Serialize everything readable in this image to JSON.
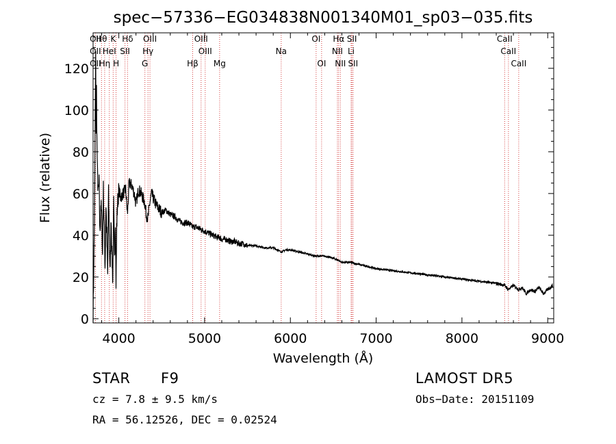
{
  "chart_data": {
    "type": "line",
    "title": "spec−57336−EG034838N001340M01_sp03−035.fits",
    "xlabel": "Wavelength (Å)",
    "ylabel": "Flux (relative)",
    "xlim": [
      3700,
      9070
    ],
    "ylim": [
      -2,
      137
    ],
    "grid": false,
    "x_ticks": [
      {
        "v": 4000,
        "label": "4000"
      },
      {
        "v": 5000,
        "label": "5000"
      },
      {
        "v": 6000,
        "label": "6000"
      },
      {
        "v": 7000,
        "label": "7000"
      },
      {
        "v": 8000,
        "label": "8000"
      },
      {
        "v": 9000,
        "label": "9000"
      }
    ],
    "y_ticks": [
      {
        "v": 0,
        "label": "0"
      },
      {
        "v": 20,
        "label": "20"
      },
      {
        "v": 40,
        "label": "40"
      },
      {
        "v": 60,
        "label": "60"
      },
      {
        "v": 80,
        "label": "80"
      },
      {
        "v": 100,
        "label": "100"
      },
      {
        "v": 120,
        "label": "120"
      }
    ],
    "series": [
      {
        "x": [
          3700,
          3710,
          3720,
          3730,
          3735,
          3740,
          3745,
          3750,
          3760,
          3770,
          3780,
          3790,
          3800,
          3810,
          3820,
          3830,
          3840,
          3850,
          3860,
          3870,
          3880,
          3890,
          3900,
          3910,
          3920,
          3930,
          3940,
          3950,
          3960,
          3968,
          3975,
          3985,
          4000,
          4020,
          4050,
          4080,
          4101,
          4120,
          4150,
          4180,
          4200,
          4230,
          4260,
          4300,
          4320,
          4340,
          4360,
          4380,
          4400,
          4430,
          4460,
          4500,
          4550,
          4600,
          4650,
          4700,
          4750,
          4800,
          4861,
          4900,
          4950,
          5000,
          5050,
          5100,
          5150,
          5175,
          5200,
          5250,
          5300,
          5350,
          5400,
          5450,
          5500,
          5600,
          5700,
          5800,
          5893,
          5950,
          6000,
          6100,
          6200,
          6300,
          6400,
          6500,
          6563,
          6600,
          6700,
          6800,
          6900,
          7000,
          7200,
          7400,
          7600,
          7800,
          8000,
          8200,
          8400,
          8498,
          8542,
          8600,
          8662,
          8700,
          8750,
          8800,
          8850,
          8900,
          8950,
          9000,
          9030,
          9060
        ],
        "y": [
          0,
          30,
          65,
          125,
          90,
          110,
          85,
          70,
          60,
          65,
          40,
          55,
          50,
          30,
          62,
          45,
          25,
          55,
          40,
          20,
          60,
          38,
          22,
          50,
          30,
          18,
          55,
          28,
          48,
          15,
          44,
          55,
          62,
          58,
          60,
          62,
          50,
          65,
          64,
          60,
          55,
          62,
          60,
          56,
          50,
          48,
          55,
          60,
          58,
          55,
          53,
          51,
          52,
          50,
          49,
          47,
          46,
          46,
          44,
          44,
          43,
          42,
          41,
          40,
          39,
          39,
          38,
          38,
          37,
          37,
          36,
          36,
          35,
          35,
          34,
          34,
          32,
          33,
          33,
          32,
          31,
          30,
          30,
          29,
          28,
          27,
          27,
          26,
          25,
          24,
          23,
          22,
          21,
          20,
          19,
          18,
          17,
          16,
          14,
          16,
          14,
          15,
          12,
          14,
          13,
          15,
          12,
          14,
          15,
          16
        ]
      }
    ],
    "lines": [
      {
        "label": "OII",
        "x": 3727,
        "row": 0
      },
      {
        "label": "Hθ",
        "x": 3798,
        "row": 0
      },
      {
        "label": "K",
        "x": 3934,
        "row": 0
      },
      {
        "label": "Hδ",
        "x": 4102,
        "row": 0
      },
      {
        "label": "OIII",
        "x": 4363,
        "row": 0
      },
      {
        "label": "OIII",
        "x": 4959,
        "row": 0
      },
      {
        "label": "OI",
        "x": 6300,
        "row": 0
      },
      {
        "label": "Hα",
        "x": 6563,
        "row": 0
      },
      {
        "label": "SII",
        "x": 6717,
        "row": 0
      },
      {
        "label": "CaII",
        "x": 8498,
        "row": 0
      },
      {
        "label": "OII",
        "x": 3727,
        "row": 1
      },
      {
        "label": "HeI",
        "x": 3889,
        "row": 1
      },
      {
        "label": "SII",
        "x": 4072,
        "row": 1
      },
      {
        "label": "Hγ",
        "x": 4340,
        "row": 1
      },
      {
        "label": "OIII",
        "x": 5007,
        "row": 1
      },
      {
        "label": "Na",
        "x": 5893,
        "row": 1
      },
      {
        "label": "NII",
        "x": 6548,
        "row": 1
      },
      {
        "label": "Li",
        "x": 6708,
        "row": 1
      },
      {
        "label": "CaII",
        "x": 8542,
        "row": 1
      },
      {
        "label": "OII",
        "x": 3727,
        "row": 2
      },
      {
        "label": "Hη",
        "x": 3835,
        "row": 2
      },
      {
        "label": "H",
        "x": 3968,
        "row": 2
      },
      {
        "label": "G",
        "x": 4304,
        "row": 2
      },
      {
        "label": "Hβ",
        "x": 4861,
        "row": 2
      },
      {
        "label": "Mg",
        "x": 5175,
        "row": 2
      },
      {
        "label": "OI",
        "x": 6364,
        "row": 2
      },
      {
        "label": "NII",
        "x": 6583,
        "row": 2
      },
      {
        "label": "SII",
        "x": 6731,
        "row": 2
      },
      {
        "label": "CaII",
        "x": 8662,
        "row": 2
      }
    ],
    "line_color": "#d43a3a",
    "spectrum_color": "#000000"
  },
  "info": {
    "class": "STAR",
    "subclass": "F9",
    "survey": "LAMOST DR5",
    "cz": "cz = 7.8 ± 9.5 km/s",
    "obs_date": "Obs−Date: 20151109",
    "coords": "RA =  56.12526, DEC =   0.02524"
  }
}
